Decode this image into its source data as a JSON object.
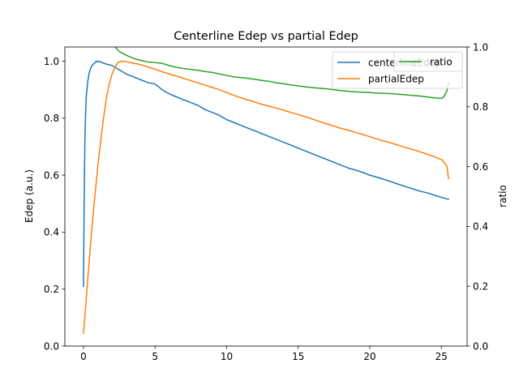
{
  "chart_data": {
    "type": "line",
    "title": "Centerline Edep vs partial Edep",
    "xlabel": "",
    "ylabel": "Edep (a.u.)",
    "y2label": "ratio",
    "xlim": [
      -1.3,
      26.8
    ],
    "ylim": [
      0.0,
      1.05
    ],
    "y2lim": [
      0.0,
      1.0
    ],
    "xticks": [
      0,
      5,
      10,
      15,
      20,
      25
    ],
    "yticks": [
      0.0,
      0.2,
      0.4,
      0.6,
      0.8,
      1.0
    ],
    "y2ticks": [
      0.0,
      0.2,
      0.4,
      0.6,
      0.8,
      1.0
    ],
    "grid": false,
    "legend_left": {
      "placement": "top-right",
      "entries": [
        "centerlineEdep",
        "partialEdep"
      ]
    },
    "legend_right": {
      "placement": "top-right",
      "entries": [
        "ratio"
      ]
    },
    "series": [
      {
        "name": "centerlineEdep",
        "axis": "left",
        "color": "#1f77b4",
        "x": [
          0,
          0.05,
          0.1,
          0.15,
          0.2,
          0.3,
          0.4,
          0.5,
          0.6,
          0.7,
          0.8,
          0.9,
          1.0,
          1.1,
          1.3,
          1.6,
          2.0,
          2.5,
          3.0,
          3.5,
          4.0,
          4.5,
          5.0,
          5.5,
          6.0,
          6.5,
          7.0,
          7.5,
          8.0,
          8.5,
          9.0,
          9.5,
          10.0,
          10.5,
          11.0,
          11.5,
          12.0,
          12.5,
          13.0,
          13.5,
          14.0,
          14.5,
          15.0,
          15.5,
          16.0,
          16.5,
          17.0,
          17.5,
          18.0,
          18.5,
          19.0,
          19.5,
          20.0,
          20.5,
          21.0,
          21.5,
          22.0,
          22.5,
          23.0,
          23.5,
          24.0,
          24.5,
          25.0,
          25.5
        ],
        "y": [
          0.21,
          0.52,
          0.72,
          0.82,
          0.88,
          0.93,
          0.96,
          0.975,
          0.985,
          0.99,
          0.995,
          1.0,
          0.998,
          1.0,
          0.995,
          0.99,
          0.985,
          0.97,
          0.955,
          0.945,
          0.935,
          0.925,
          0.92,
          0.9,
          0.885,
          0.875,
          0.865,
          0.855,
          0.845,
          0.83,
          0.82,
          0.81,
          0.795,
          0.785,
          0.775,
          0.765,
          0.755,
          0.745,
          0.735,
          0.725,
          0.715,
          0.705,
          0.695,
          0.685,
          0.675,
          0.665,
          0.655,
          0.645,
          0.635,
          0.625,
          0.618,
          0.61,
          0.6,
          0.593,
          0.585,
          0.577,
          0.568,
          0.56,
          0.552,
          0.544,
          0.538,
          0.53,
          0.522,
          0.515
        ]
      },
      {
        "name": "partialEdep",
        "axis": "left",
        "color": "#ff7f0e",
        "x": [
          0,
          0.2,
          0.4,
          0.6,
          0.8,
          1.0,
          1.2,
          1.4,
          1.6,
          1.8,
          2.0,
          2.2,
          2.4,
          2.6,
          2.8,
          3.0,
          3.5,
          4.0,
          4.5,
          5.0,
          5.5,
          6.0,
          6.5,
          7.0,
          7.5,
          8.0,
          8.5,
          9.0,
          9.5,
          10.0,
          10.5,
          11.0,
          11.5,
          12.0,
          12.5,
          13.0,
          13.5,
          14.0,
          14.5,
          15.0,
          15.5,
          16.0,
          16.5,
          17.0,
          17.5,
          18.0,
          18.5,
          19.0,
          19.5,
          20.0,
          20.5,
          21.0,
          21.5,
          22.0,
          22.5,
          23.0,
          23.5,
          24.0,
          24.5,
          25.0,
          25.2,
          25.4,
          25.5
        ],
        "y": [
          0.045,
          0.17,
          0.3,
          0.42,
          0.53,
          0.63,
          0.72,
          0.8,
          0.87,
          0.92,
          0.955,
          0.98,
          0.995,
          1.0,
          1.0,
          0.998,
          0.993,
          0.988,
          0.98,
          0.972,
          0.963,
          0.955,
          0.948,
          0.94,
          0.932,
          0.924,
          0.916,
          0.908,
          0.9,
          0.89,
          0.88,
          0.872,
          0.864,
          0.856,
          0.848,
          0.842,
          0.835,
          0.828,
          0.82,
          0.813,
          0.805,
          0.797,
          0.788,
          0.78,
          0.772,
          0.764,
          0.758,
          0.75,
          0.743,
          0.735,
          0.727,
          0.72,
          0.713,
          0.705,
          0.697,
          0.69,
          0.682,
          0.674,
          0.665,
          0.655,
          0.645,
          0.63,
          0.588
        ]
      },
      {
        "name": "ratio",
        "axis": "right",
        "color": "#2ca02c",
        "x": [
          2.2,
          2.5,
          3.0,
          3.5,
          4.0,
          4.5,
          5.0,
          5.5,
          6.0,
          6.5,
          7.0,
          7.5,
          8.0,
          8.5,
          9.0,
          9.5,
          10.0,
          10.5,
          11.0,
          11.5,
          12.0,
          12.5,
          13.0,
          13.5,
          14.0,
          14.5,
          15.0,
          15.5,
          16.0,
          16.5,
          17.0,
          17.5,
          18.0,
          18.5,
          19.0,
          19.5,
          20.0,
          20.5,
          21.0,
          21.5,
          22.0,
          22.5,
          23.0,
          23.5,
          24.0,
          24.5,
          25.0,
          25.2,
          25.4,
          25.5
        ],
        "y": [
          1.0,
          0.985,
          0.972,
          0.962,
          0.955,
          0.95,
          0.948,
          0.945,
          0.938,
          0.932,
          0.928,
          0.925,
          0.922,
          0.918,
          0.915,
          0.91,
          0.905,
          0.9,
          0.898,
          0.895,
          0.892,
          0.888,
          0.885,
          0.88,
          0.877,
          0.873,
          0.87,
          0.867,
          0.864,
          0.862,
          0.86,
          0.857,
          0.854,
          0.852,
          0.85,
          0.849,
          0.848,
          0.846,
          0.845,
          0.844,
          0.842,
          0.84,
          0.838,
          0.836,
          0.833,
          0.83,
          0.828,
          0.835,
          0.855,
          0.88
        ]
      }
    ]
  }
}
